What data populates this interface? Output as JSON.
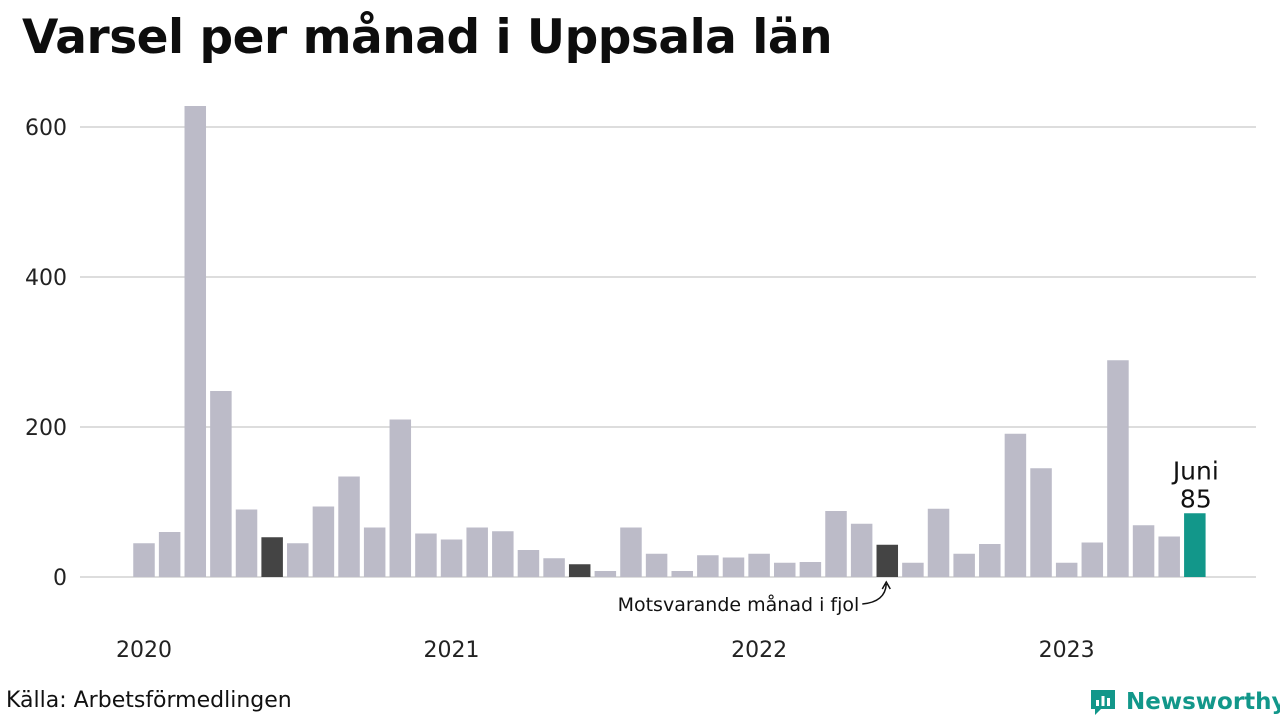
{
  "title": "Varsel per månad i Uppsala län",
  "source": "Källa: Arbetsförmedlingen",
  "brand": {
    "name": "Newsworthy",
    "icon": "newsworthy-logo-icon",
    "color": "#12978a"
  },
  "chart_data": {
    "type": "bar",
    "title": "Varsel per månad i Uppsala län",
    "xlabel": "",
    "ylabel": "",
    "ylim": [
      0,
      640
    ],
    "yticks": [
      0,
      200,
      400,
      600
    ],
    "grid": true,
    "legend": "none",
    "year_labels": [
      {
        "label": "2020",
        "index": 0
      },
      {
        "label": "2021",
        "index": 12
      },
      {
        "label": "2022",
        "index": 24
      },
      {
        "label": "2023",
        "index": 36
      }
    ],
    "categories": [
      "2020-01",
      "2020-02",
      "2020-03",
      "2020-04",
      "2020-05",
      "2020-06",
      "2020-07",
      "2020-08",
      "2020-09",
      "2020-10",
      "2020-11",
      "2020-12",
      "2021-01",
      "2021-02",
      "2021-03",
      "2021-04",
      "2021-05",
      "2021-06",
      "2021-07",
      "2021-08",
      "2021-09",
      "2021-10",
      "2021-11",
      "2021-12",
      "2022-01",
      "2022-02",
      "2022-03",
      "2022-04",
      "2022-05",
      "2022-06",
      "2022-07",
      "2022-08",
      "2022-09",
      "2022-10",
      "2022-11",
      "2022-12",
      "2023-01",
      "2023-02",
      "2023-03",
      "2023-04",
      "2023-05",
      "2023-06"
    ],
    "values": [
      45,
      60,
      628,
      248,
      90,
      53,
      45,
      94,
      134,
      66,
      210,
      58,
      50,
      66,
      61,
      36,
      25,
      17,
      8,
      66,
      31,
      8,
      29,
      26,
      31,
      19,
      20,
      88,
      71,
      43,
      19,
      91,
      31,
      44,
      191,
      145,
      19,
      46,
      289,
      69,
      54,
      85
    ],
    "highlight_same_month_indices": [
      5,
      17,
      29
    ],
    "current_index": 41,
    "colors": {
      "default": "#bcbbc8",
      "same_month": "#444444",
      "current": "#12978a",
      "grid": "#dddddd"
    },
    "annotations": {
      "current_month": "Juni",
      "current_value": "85",
      "same_month_note": "Motsvarande månad i fjol"
    }
  }
}
